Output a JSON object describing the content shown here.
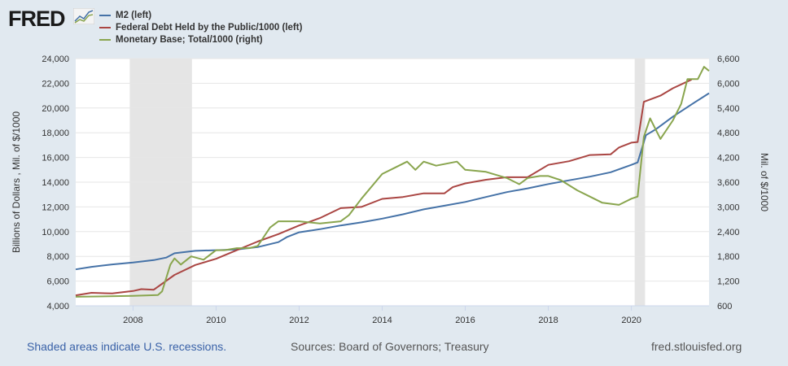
{
  "logo": "FRED",
  "chart_data": {
    "type": "line",
    "xlim": [
      2006.62,
      2021.87
    ],
    "ylim_left": [
      4000,
      24000
    ],
    "ylim_right": [
      600,
      6600
    ],
    "ylabel_left": "Billions of Dollars , Mil. of $/1000",
    "ylabel_right": "Mil. of $/1000",
    "left_ticks": [
      "4,000",
      "6,000",
      "8,000",
      "10,000",
      "12,000",
      "14,000",
      "16,000",
      "18,000",
      "20,000",
      "22,000",
      "24,000"
    ],
    "right_ticks": [
      "600",
      "1,200",
      "1,800",
      "2,400",
      "3,000",
      "3,600",
      "4,200",
      "4,800",
      "5,400",
      "6,000",
      "6,600"
    ],
    "x_ticks": [
      "2008",
      "2010",
      "2012",
      "2014",
      "2016",
      "2018",
      "2020"
    ],
    "recessions": [
      [
        2007.92,
        2009.42
      ],
      [
        2020.08,
        2020.33
      ]
    ],
    "legend_position": "top-left",
    "series": [
      {
        "name": "M2 (left)",
        "axis": "left",
        "color": "#4572a7",
        "x": [
          2006.62,
          2007,
          2007.5,
          2008,
          2008.5,
          2008.8,
          2009,
          2009.5,
          2010,
          2010.5,
          2011,
          2011.5,
          2011.7,
          2012,
          2012.5,
          2013,
          2013.5,
          2014,
          2014.5,
          2015,
          2015.5,
          2016,
          2016.5,
          2017,
          2017.5,
          2018,
          2018.5,
          2019,
          2019.5,
          2020,
          2020.15,
          2020.35,
          2020.6,
          2021,
          2021.5,
          2021.87
        ],
        "y": [
          6950,
          7150,
          7350,
          7500,
          7700,
          7900,
          8250,
          8450,
          8500,
          8550,
          8750,
          9150,
          9550,
          9950,
          10200,
          10500,
          10750,
          11050,
          11400,
          11800,
          12100,
          12400,
          12800,
          13200,
          13500,
          13850,
          14150,
          14450,
          14800,
          15400,
          15600,
          17800,
          18300,
          19300,
          20400,
          21200
        ]
      },
      {
        "name": "Federal Debt Held by the Public/1000 (left)",
        "axis": "left",
        "color": "#aa4643",
        "x": [
          2006.62,
          2007,
          2007.5,
          2008,
          2008.2,
          2008.5,
          2009,
          2009.5,
          2010,
          2010.5,
          2011,
          2011.5,
          2012,
          2012.5,
          2013,
          2013.5,
          2014,
          2014.5,
          2015,
          2015.5,
          2015.7,
          2016,
          2016.5,
          2017,
          2017.5,
          2018,
          2018.5,
          2019,
          2019.5,
          2019.7,
          2020,
          2020.15,
          2020.3,
          2020.7,
          2021,
          2021.45
        ],
        "y": [
          4850,
          5050,
          5000,
          5200,
          5350,
          5300,
          6500,
          7300,
          7800,
          8500,
          9200,
          9800,
          10500,
          11100,
          11900,
          12000,
          12650,
          12800,
          13100,
          13100,
          13600,
          13900,
          14200,
          14400,
          14400,
          15400,
          15700,
          16200,
          16250,
          16800,
          17200,
          17250,
          20500,
          21000,
          21600,
          22300
        ]
      },
      {
        "name": "Monetary Base; Total/1000 (right)",
        "axis": "right",
        "color": "#89a54e",
        "x": [
          2006.62,
          2008,
          2008.6,
          2008.7,
          2008.9,
          2009,
          2009.15,
          2009.4,
          2009.7,
          2010,
          2010.2,
          2010.5,
          2010.8,
          2011,
          2011.3,
          2011.5,
          2012,
          2012.5,
          2013,
          2013.2,
          2013.5,
          2014,
          2014.3,
          2014.6,
          2014.8,
          2015,
          2015.3,
          2015.8,
          2016,
          2016.5,
          2017,
          2017.3,
          2017.5,
          2017.8,
          2018,
          2018.3,
          2018.7,
          2019,
          2019.3,
          2019.7,
          2020,
          2020.15,
          2020.3,
          2020.45,
          2020.7,
          2021,
          2021.2,
          2021.35,
          2021.6,
          2021.75,
          2021.87
        ],
        "y": [
          820,
          840,
          860,
          950,
          1600,
          1750,
          1600,
          1800,
          1720,
          1950,
          1950,
          2000,
          2000,
          2050,
          2500,
          2650,
          2650,
          2600,
          2650,
          2800,
          3200,
          3800,
          3950,
          4100,
          3900,
          4100,
          4000,
          4100,
          3900,
          3850,
          3700,
          3550,
          3700,
          3750,
          3750,
          3650,
          3400,
          3250,
          3100,
          3050,
          3200,
          3250,
          4700,
          5150,
          4650,
          5100,
          5500,
          6100,
          6100,
          6400,
          6300
        ]
      }
    ]
  },
  "footer": {
    "recessions_note": "Shaded areas indicate U.S. recessions.",
    "sources": "Sources: Board of Governors; Treasury",
    "site": "fred.stlouisfed.org"
  }
}
